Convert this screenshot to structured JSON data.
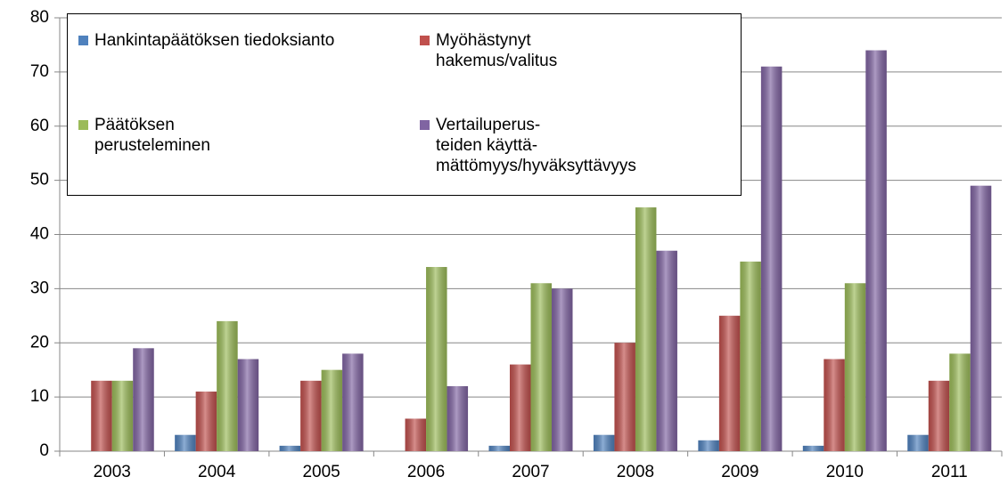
{
  "chart_data": {
    "type": "bar",
    "categories": [
      "2003",
      "2004",
      "2005",
      "2006",
      "2007",
      "2008",
      "2009",
      "2010",
      "2011"
    ],
    "series": [
      {
        "name": "Hankintapäätöksen tiedoksianto",
        "color": "#4f81bd",
        "values": [
          0,
          3,
          1,
          0,
          1,
          3,
          2,
          1,
          3
        ]
      },
      {
        "name": "Myöhästynyt\nhakemus/valitus",
        "color": "#c0504d",
        "values": [
          13,
          11,
          13,
          6,
          16,
          20,
          25,
          17,
          13
        ]
      },
      {
        "name": "Päätöksen\nperusteleminen",
        "color": "#9bbb59",
        "values": [
          13,
          24,
          15,
          34,
          31,
          45,
          35,
          31,
          18
        ]
      },
      {
        "name": "Vertailuperus-\nteiden käyttä-\nmättömyys/hyväksyttävyys",
        "color": "#8064a2",
        "values": [
          19,
          17,
          18,
          12,
          30,
          37,
          71,
          74,
          49
        ]
      }
    ],
    "ylim": [
      0,
      80
    ],
    "yticks": [
      0,
      10,
      20,
      30,
      40,
      50,
      60,
      70,
      80
    ],
    "grid": true,
    "legend": "top-left"
  }
}
